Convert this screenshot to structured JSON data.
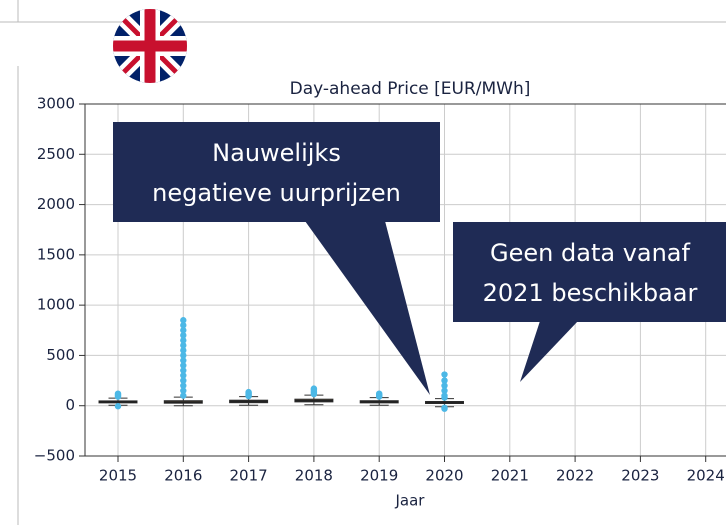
{
  "chart_data": {
    "type": "box",
    "title": "Day-ahead Price [EUR/MWh]",
    "x_label": "Jaar",
    "categories": [
      "2015",
      "2016",
      "2017",
      "2018",
      "2019",
      "2020",
      "2021",
      "2022",
      "2023",
      "2024"
    ],
    "q1": [
      28,
      25,
      30,
      38,
      28,
      22,
      null,
      null,
      null,
      null
    ],
    "median": [
      38,
      36,
      42,
      50,
      38,
      32,
      null,
      null,
      null,
      null
    ],
    "q3": [
      48,
      50,
      55,
      65,
      50,
      42,
      null,
      null,
      null,
      null
    ],
    "whislo": [
      5,
      0,
      5,
      10,
      5,
      -10,
      null,
      null,
      null,
      null
    ],
    "whishi": [
      75,
      85,
      90,
      105,
      80,
      70,
      null,
      null,
      null,
      null
    ],
    "outliers": [
      [
        -5,
        90,
        100,
        110,
        120
      ],
      [
        100,
        150,
        200,
        250,
        300,
        350,
        400,
        450,
        500,
        550,
        600,
        650,
        700,
        750,
        800,
        850
      ],
      [
        95,
        105,
        115,
        125,
        135
      ],
      [
        115,
        130,
        145,
        160,
        170
      ],
      [
        90,
        100,
        110,
        120
      ],
      [
        -30,
        -20,
        80,
        100,
        150,
        200,
        250,
        310
      ]
    ],
    "box_color": "#d9a66f",
    "outlier_color": "#4cb8e6",
    "ylim": [
      -500,
      3000
    ],
    "yticks": [
      {
        "value": -500,
        "label": "−500"
      },
      0,
      500,
      1000,
      1500,
      2000,
      2500,
      3000
    ],
    "grid": true,
    "annotations": [
      {
        "lines": [
          "Nauwelijks",
          "negatieve uurprijzen"
        ]
      },
      {
        "lines": [
          "Geen data vanaf",
          "2021 beschikbaar"
        ]
      }
    ],
    "annotation_color": "#1f2b55"
  }
}
